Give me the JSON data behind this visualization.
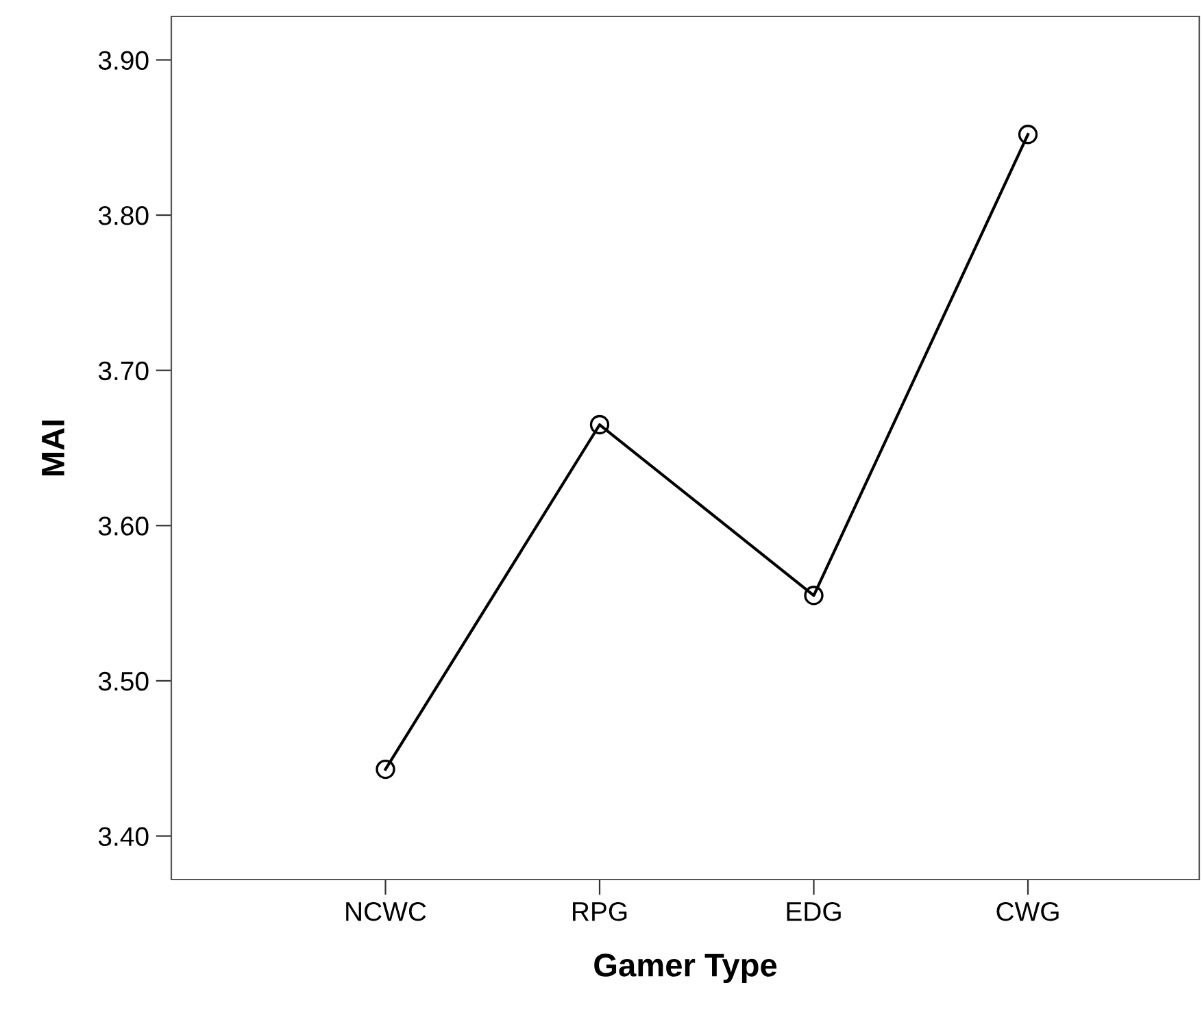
{
  "chart_data": {
    "type": "line",
    "xlabel": "Gamer Type",
    "ylabel": "MAI",
    "categories": [
      "NCWC",
      "RPG",
      "EDG",
      "CWG"
    ],
    "series": [
      {
        "color": "#000000",
        "values": [
          3.443,
          3.665,
          3.555,
          3.852
        ]
      }
    ],
    "ylim": [
      3.372,
      3.928
    ],
    "yticks": [
      {
        "value": 3.4,
        "label": "3.40"
      },
      {
        "value": 3.5,
        "label": "3.50"
      },
      {
        "value": 3.6,
        "label": "3.60"
      },
      {
        "value": 3.7,
        "label": "3.70"
      },
      {
        "value": 3.8,
        "label": "3.80"
      },
      {
        "value": 3.9,
        "label": "3.90"
      }
    ],
    "marker": "circle",
    "line_style": "solid",
    "grid": false,
    "legend": false
  }
}
